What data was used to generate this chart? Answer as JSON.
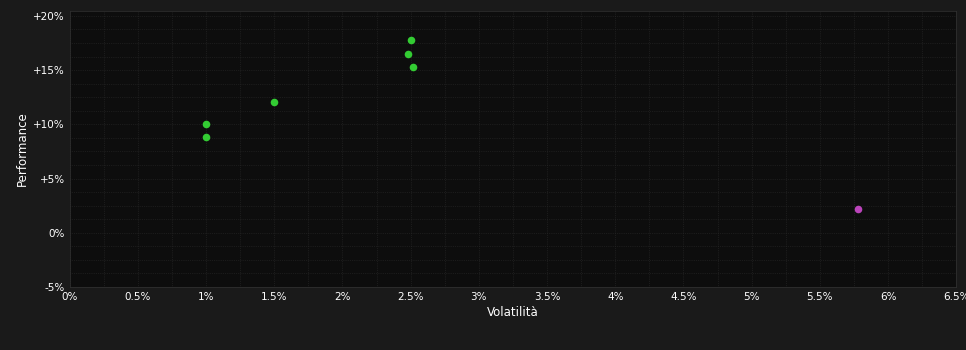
{
  "xlabel": "Volatilità",
  "ylabel": "Performance",
  "xlim": [
    0.0,
    0.065
  ],
  "ylim": [
    -0.05,
    0.205
  ],
  "xticks": [
    0.0,
    0.005,
    0.01,
    0.015,
    0.02,
    0.025,
    0.03,
    0.035,
    0.04,
    0.045,
    0.05,
    0.055,
    0.06,
    0.065
  ],
  "xtick_labels": [
    "0%",
    "0.5%",
    "1%",
    "1.5%",
    "2%",
    "2.5%",
    "3%",
    "3.5%",
    "4%",
    "4.5%",
    "5%",
    "5.5%",
    "6%",
    "6.5%"
  ],
  "yticks": [
    -0.05,
    0.0,
    0.05,
    0.1,
    0.15,
    0.2
  ],
  "ytick_labels": [
    "-5%",
    "0%",
    "+5%",
    "+10%",
    "+15%",
    "+20%"
  ],
  "background_color": "#1a1a1a",
  "plot_bg_color": "#0d0d0d",
  "grid_color": "#2a2a2a",
  "text_color": "#ffffff",
  "green_points": [
    [
      0.01,
      0.1
    ],
    [
      0.01,
      0.088
    ],
    [
      0.015,
      0.121
    ],
    [
      0.025,
      0.178
    ],
    [
      0.0248,
      0.165
    ],
    [
      0.0252,
      0.153
    ]
  ],
  "magenta_points": [
    [
      0.0578,
      0.022
    ]
  ],
  "green_color": "#33cc33",
  "magenta_color": "#bb44bb",
  "marker_size": 30
}
